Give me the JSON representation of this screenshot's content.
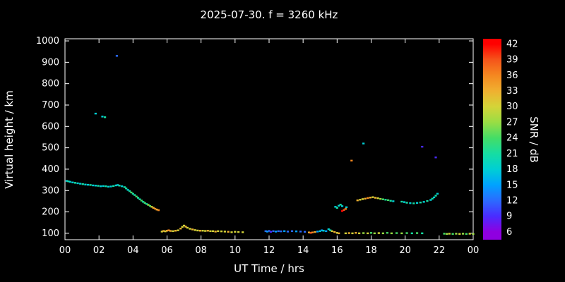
{
  "chart_data": {
    "type": "scatter",
    "title": "2025-07-30. f = 3260 kHz",
    "xlabel": "UT Time / hrs",
    "ylabel": "Virtual height / km",
    "xlim": [
      0,
      24
    ],
    "ylim": [
      70,
      1010
    ],
    "grid": false,
    "background": "#000000",
    "axis_color": "#ffffff",
    "x_ticks": [
      {
        "v": 0,
        "label": "00"
      },
      {
        "v": 2,
        "label": "02"
      },
      {
        "v": 4,
        "label": "04"
      },
      {
        "v": 6,
        "label": "06"
      },
      {
        "v": 8,
        "label": "08"
      },
      {
        "v": 10,
        "label": "10"
      },
      {
        "v": 12,
        "label": "12"
      },
      {
        "v": 14,
        "label": "14"
      },
      {
        "v": 16,
        "label": "16"
      },
      {
        "v": 18,
        "label": "18"
      },
      {
        "v": 20,
        "label": "20"
      },
      {
        "v": 22,
        "label": "22"
      },
      {
        "v": 24,
        "label": "00"
      }
    ],
    "y_ticks": [
      100,
      200,
      300,
      400,
      500,
      600,
      700,
      800,
      900,
      1000
    ],
    "colorbar": {
      "label": "SNR / dB",
      "range": [
        4.5,
        43
      ],
      "ticks": [
        42,
        39,
        36,
        33,
        30,
        27,
        24,
        21,
        18,
        15,
        12,
        9,
        6
      ],
      "stops": [
        {
          "v": 6,
          "color": "#8f00e0"
        },
        {
          "v": 9,
          "color": "#4a2bff"
        },
        {
          "v": 12,
          "color": "#2b6bff"
        },
        {
          "v": 15,
          "color": "#00a2ff"
        },
        {
          "v": 18,
          "color": "#00cfd4"
        },
        {
          "v": 21,
          "color": "#16dda2"
        },
        {
          "v": 24,
          "color": "#44dd66"
        },
        {
          "v": 27,
          "color": "#99dd44"
        },
        {
          "v": 30,
          "color": "#d4d438"
        },
        {
          "v": 33,
          "color": "#f0b030"
        },
        {
          "v": 36,
          "color": "#f58820"
        },
        {
          "v": 39,
          "color": "#f5541a"
        },
        {
          "v": 42,
          "color": "#ff0000"
        }
      ]
    },
    "points": [
      [
        0.1,
        345,
        18
      ],
      [
        0.2,
        343,
        21
      ],
      [
        0.3,
        341,
        18
      ],
      [
        0.45,
        338,
        18
      ],
      [
        0.6,
        336,
        21
      ],
      [
        0.75,
        334,
        18
      ],
      [
        0.9,
        332,
        18
      ],
      [
        1.05,
        330,
        21
      ],
      [
        1.2,
        328,
        18
      ],
      [
        1.35,
        327,
        18
      ],
      [
        1.5,
        326,
        21
      ],
      [
        1.65,
        324,
        18
      ],
      [
        1.8,
        323,
        18
      ],
      [
        1.95,
        322,
        21
      ],
      [
        2.1,
        320,
        18
      ],
      [
        2.25,
        321,
        18
      ],
      [
        2.4,
        320,
        21
      ],
      [
        2.55,
        318,
        18
      ],
      [
        2.7,
        319,
        18
      ],
      [
        2.85,
        321,
        21
      ],
      [
        3.0,
        324,
        18
      ],
      [
        3.1,
        326,
        18
      ],
      [
        3.2,
        323,
        21
      ],
      [
        3.35,
        320,
        18
      ],
      [
        3.5,
        316,
        21
      ],
      [
        3.6,
        310,
        21
      ],
      [
        3.7,
        303,
        18
      ],
      [
        3.8,
        297,
        21
      ],
      [
        3.9,
        291,
        24
      ],
      [
        4.0,
        285,
        21
      ],
      [
        4.1,
        279,
        21
      ],
      [
        4.2,
        272,
        24
      ],
      [
        4.3,
        266,
        21
      ],
      [
        4.4,
        259,
        21
      ],
      [
        4.5,
        253,
        24
      ],
      [
        4.6,
        247,
        21
      ],
      [
        4.7,
        242,
        24
      ],
      [
        4.8,
        237,
        21
      ],
      [
        4.9,
        233,
        27
      ],
      [
        5.0,
        228,
        24
      ],
      [
        5.1,
        224,
        30
      ],
      [
        5.2,
        219,
        33
      ],
      [
        5.3,
        215,
        36
      ],
      [
        5.4,
        211,
        33
      ],
      [
        5.5,
        208,
        36
      ],
      [
        1.8,
        660,
        18
      ],
      [
        2.2,
        646,
        18
      ],
      [
        2.35,
        643,
        21
      ],
      [
        3.05,
        930,
        12
      ],
      [
        5.7,
        108,
        30
      ],
      [
        5.8,
        111,
        33
      ],
      [
        5.9,
        109,
        30
      ],
      [
        6.0,
        112,
        33
      ],
      [
        6.1,
        114,
        36
      ],
      [
        6.2,
        111,
        33
      ],
      [
        6.35,
        110,
        30
      ],
      [
        6.5,
        112,
        33
      ],
      [
        6.65,
        114,
        30
      ],
      [
        6.8,
        122,
        33
      ],
      [
        6.9,
        130,
        30
      ],
      [
        7.0,
        136,
        30
      ],
      [
        7.1,
        131,
        33
      ],
      [
        7.2,
        126,
        30
      ],
      [
        7.35,
        121,
        30
      ],
      [
        7.5,
        118,
        33
      ],
      [
        7.65,
        115,
        30
      ],
      [
        7.8,
        113,
        30
      ],
      [
        7.95,
        112,
        33
      ],
      [
        8.1,
        112,
        30
      ],
      [
        8.25,
        111,
        30
      ],
      [
        8.4,
        112,
        33
      ],
      [
        8.55,
        110,
        30
      ],
      [
        8.7,
        110,
        30
      ],
      [
        8.85,
        108,
        33
      ],
      [
        9.0,
        110,
        30
      ],
      [
        9.2,
        109,
        30
      ],
      [
        9.4,
        108,
        30
      ],
      [
        9.6,
        107,
        33
      ],
      [
        9.8,
        105,
        30
      ],
      [
        10.0,
        107,
        30
      ],
      [
        10.2,
        106,
        30
      ],
      [
        10.45,
        105,
        30
      ],
      [
        11.8,
        110,
        12
      ],
      [
        11.9,
        108,
        15
      ],
      [
        12.0,
        111,
        12
      ],
      [
        12.1,
        107,
        9
      ],
      [
        12.25,
        110,
        12
      ],
      [
        12.4,
        108,
        15
      ],
      [
        12.55,
        110,
        12
      ],
      [
        12.7,
        109,
        12
      ],
      [
        12.9,
        110,
        15
      ],
      [
        13.1,
        108,
        12
      ],
      [
        13.35,
        110,
        12
      ],
      [
        13.6,
        109,
        15
      ],
      [
        13.85,
        108,
        12
      ],
      [
        14.1,
        107,
        12
      ],
      [
        14.35,
        104,
        33
      ],
      [
        14.45,
        102,
        39
      ],
      [
        14.55,
        104,
        36
      ],
      [
        14.7,
        106,
        33
      ],
      [
        14.85,
        108,
        15
      ],
      [
        15.0,
        110,
        18
      ],
      [
        15.1,
        114,
        15
      ],
      [
        15.2,
        112,
        18
      ],
      [
        15.35,
        110,
        15
      ],
      [
        15.5,
        119,
        18
      ],
      [
        15.6,
        114,
        21
      ],
      [
        15.7,
        110,
        30
      ],
      [
        15.85,
        106,
        33
      ],
      [
        16.0,
        102,
        30
      ],
      [
        16.1,
        100,
        33
      ],
      [
        15.9,
        224,
        18
      ],
      [
        16.0,
        219,
        21
      ],
      [
        16.1,
        229,
        18
      ],
      [
        16.2,
        234,
        21
      ],
      [
        16.3,
        227,
        18
      ],
      [
        16.3,
        204,
        42
      ],
      [
        16.4,
        209,
        39
      ],
      [
        16.5,
        214,
        36
      ],
      [
        16.55,
        222,
        18
      ],
      [
        16.85,
        440,
        36
      ],
      [
        17.55,
        520,
        18
      ],
      [
        21.0,
        505,
        9
      ],
      [
        21.8,
        455,
        9
      ],
      [
        17.2,
        254,
        33
      ],
      [
        17.35,
        257,
        30
      ],
      [
        17.5,
        260,
        30
      ],
      [
        17.65,
        262,
        33
      ],
      [
        17.8,
        265,
        36
      ],
      [
        17.95,
        267,
        33
      ],
      [
        18.1,
        269,
        30
      ],
      [
        18.25,
        266,
        33
      ],
      [
        18.4,
        264,
        30
      ],
      [
        18.55,
        261,
        27
      ],
      [
        18.7,
        259,
        24
      ],
      [
        18.85,
        257,
        21
      ],
      [
        19.0,
        255,
        24
      ],
      [
        19.15,
        252,
        21
      ],
      [
        19.3,
        250,
        18
      ],
      [
        19.8,
        248,
        21
      ],
      [
        19.95,
        246,
        18
      ],
      [
        20.1,
        243,
        21
      ],
      [
        20.3,
        241,
        18
      ],
      [
        20.5,
        240,
        21
      ],
      [
        20.7,
        242,
        18
      ],
      [
        20.9,
        244,
        21
      ],
      [
        21.1,
        247,
        18
      ],
      [
        21.3,
        251,
        21
      ],
      [
        21.5,
        256,
        18
      ],
      [
        21.6,
        262,
        21
      ],
      [
        21.7,
        268,
        18
      ],
      [
        21.8,
        276,
        21
      ],
      [
        21.9,
        285,
        18
      ],
      [
        16.5,
        100,
        30
      ],
      [
        16.7,
        101,
        33
      ],
      [
        16.9,
        100,
        30
      ],
      [
        17.1,
        102,
        33
      ],
      [
        17.3,
        100,
        30
      ],
      [
        17.55,
        101,
        27
      ],
      [
        17.8,
        100,
        30
      ],
      [
        18.0,
        102,
        24
      ],
      [
        18.2,
        100,
        27
      ],
      [
        18.45,
        101,
        30
      ],
      [
        18.7,
        100,
        27
      ],
      [
        18.95,
        102,
        24
      ],
      [
        19.2,
        100,
        27
      ],
      [
        19.5,
        101,
        24
      ],
      [
        19.8,
        100,
        27
      ],
      [
        20.1,
        101,
        24
      ],
      [
        20.4,
        100,
        21
      ],
      [
        20.7,
        101,
        24
      ],
      [
        21.0,
        100,
        21
      ],
      [
        22.3,
        98,
        24
      ],
      [
        22.45,
        97,
        27
      ],
      [
        22.6,
        98,
        30
      ],
      [
        22.8,
        97,
        24
      ],
      [
        23.0,
        98,
        27
      ],
      [
        23.2,
        97,
        30
      ],
      [
        23.4,
        98,
        27
      ],
      [
        23.6,
        97,
        24
      ],
      [
        23.8,
        98,
        30
      ],
      [
        24.0,
        97,
        27
      ]
    ]
  }
}
